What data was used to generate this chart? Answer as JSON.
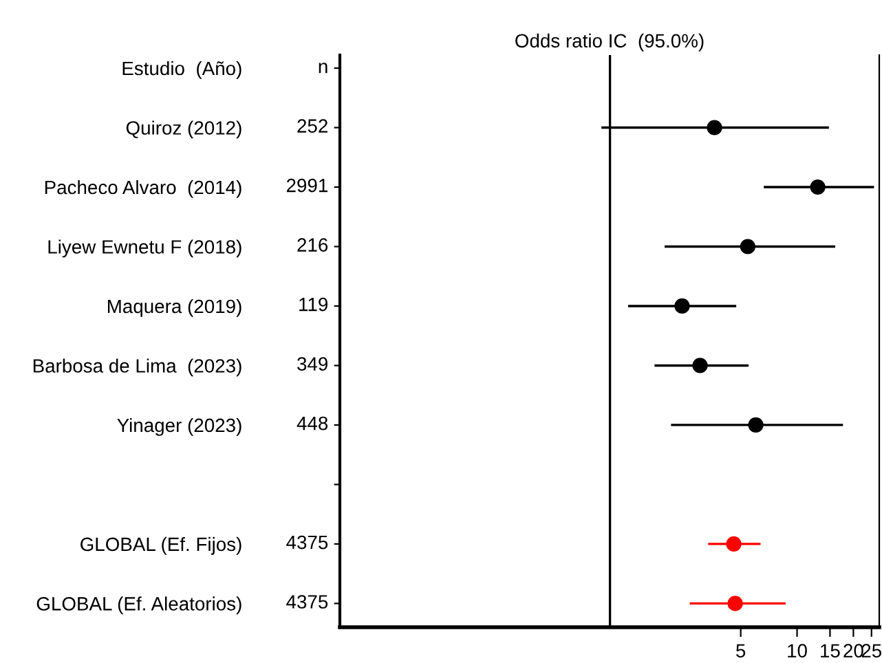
{
  "chart_data": {
    "type": "scatter",
    "title": "Odds ratio IC  (95.0%)",
    "categories": [
      "Estudio  (Año)",
      "Quiroz (2012)",
      "Pacheco Alvaro  (2014)",
      "Liyew Ewnetu F (2018)",
      "Maquera (2019)",
      "Barbosa de Lima  (2023)",
      "Yinager (2023)",
      null,
      "GLOBAL (Ef. Fijos)",
      "GLOBAL (Ef. Aleatorios)"
    ],
    "values": [
      null,
      3.62,
      12.9,
      5.45,
      2.43,
      3.03,
      6.02,
      null,
      4.59,
      4.67
    ],
    "errors": [
      null,
      [
        0.9,
        14.8
      ],
      [
        6.64,
        25.8
      ],
      [
        1.96,
        16.0
      ],
      [
        1.25,
        4.73
      ],
      [
        1.73,
        5.51
      ],
      [
        2.12,
        17.6
      ],
      null,
      [
        3.35,
        6.38
      ],
      [
        2.67,
        8.69
      ]
    ],
    "colors": [
      null,
      "#000000",
      "#000000",
      "#000000",
      "#000000",
      "#000000",
      "#000000",
      null,
      "#ff0000",
      "#ff0000"
    ],
    "orientation": "horizontal",
    "log": "x",
    "marker": "circle",
    "grid": false,
    "legend": false,
    "xlim": [
      0.036,
      27.5
    ],
    "xticks": [
      5,
      10,
      15,
      20,
      25
    ],
    "ref_lines": [
      {
        "axis": "x",
        "value": 1,
        "color": "#000000"
      }
    ],
    "annotations": [
      "n",
      "252",
      "2991",
      "216",
      "119",
      "349",
      "448",
      "4375",
      "4375"
    ]
  }
}
